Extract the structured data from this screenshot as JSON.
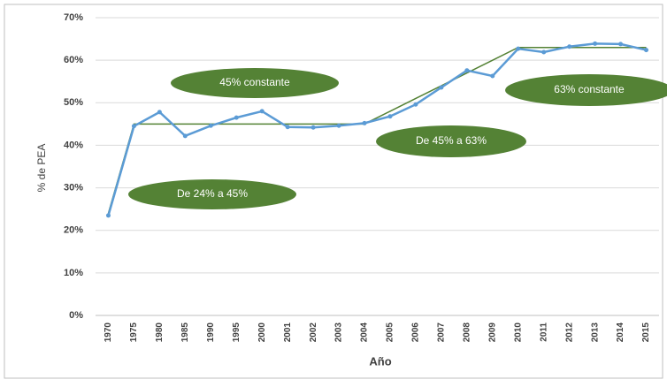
{
  "chart_data": {
    "type": "line",
    "x_label": "Año",
    "y_label": "% de PEA",
    "categories": [
      "1970",
      "1975",
      "1980",
      "1985",
      "1990",
      "1995",
      "2000",
      "2001",
      "2002",
      "2003",
      "2004",
      "2005",
      "2006",
      "2007",
      "2008",
      "2009",
      "2010",
      "2011",
      "2012",
      "2013",
      "2014",
      "2015"
    ],
    "series": [
      {
        "color": "#5b9bd5",
        "values": [
          23.5,
          44.5,
          47.8,
          42.2,
          44.6,
          46.5,
          48,
          44.3,
          44.2,
          44.6,
          45.2,
          46.8,
          49.6,
          53.6,
          57.6,
          56.3,
          62.7,
          61.9,
          63.2,
          63.9,
          63.8,
          62.4
        ]
      },
      {
        "color": "#548235",
        "values": [
          24,
          45,
          45,
          45,
          45,
          45,
          45,
          45,
          45,
          45,
          45,
          48,
          51,
          54,
          57,
          60,
          63,
          63,
          63,
          63,
          63,
          63
        ]
      }
    ],
    "ylim": [
      0,
      70
    ],
    "yticks": [
      {
        "value": 0,
        "label": "0%"
      },
      {
        "value": 10,
        "label": "10%"
      },
      {
        "value": 20,
        "label": "20%"
      },
      {
        "value": 30,
        "label": "30%"
      },
      {
        "value": 40,
        "label": "40%"
      },
      {
        "value": 50,
        "label": "50%"
      },
      {
        "value": 60,
        "label": "60%"
      },
      {
        "value": 70,
        "label": "70%"
      }
    ],
    "grid": true,
    "annotations": [
      "45% constante",
      "De 24% a 45%",
      "De 45% a 63%",
      "63% constante"
    ],
    "annotation_color": "#548235"
  }
}
